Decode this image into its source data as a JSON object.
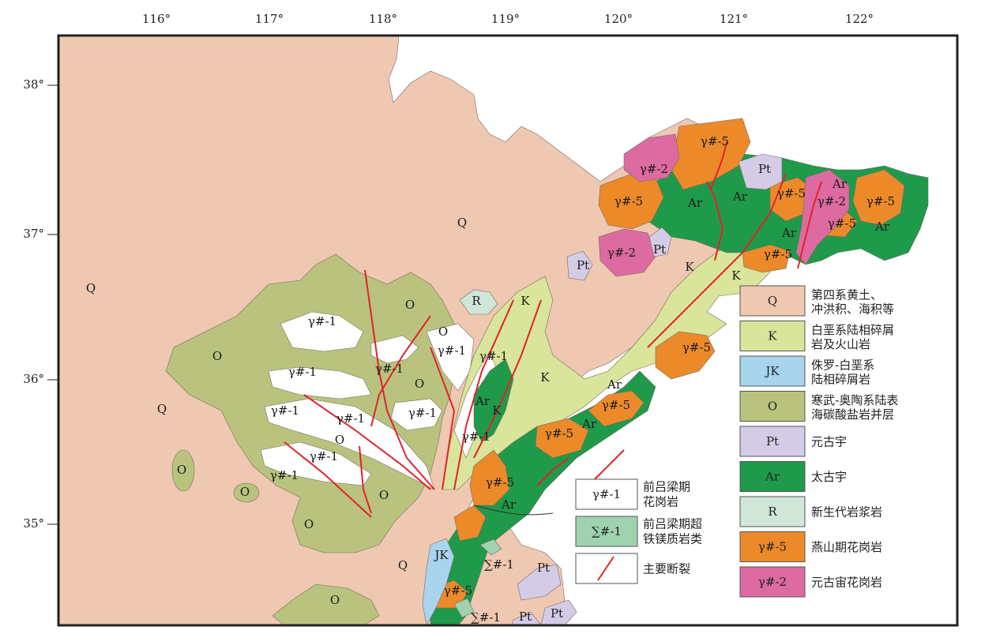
{
  "colors": {
    "Q": "#efc8b1",
    "K": "#d9e59a",
    "JK": "#a9d4ee",
    "O": "#b9c37e",
    "Pt": "#d4cce6",
    "Ar": "#1f9a4a",
    "R": "#cfe6d8",
    "g5": "#ec8a2a",
    "g2": "#dd6aa0",
    "g1": "#ffffff",
    "s1": "#9fd3b0",
    "fault": "#e0232b"
  },
  "axes": {
    "lon_ticks": [
      "116°",
      "117°",
      "118°",
      "119°",
      "120°",
      "121°",
      "122°"
    ],
    "lat_ticks": [
      "38°",
      "37°",
      "36°",
      "35°"
    ]
  },
  "legend_right": [
    {
      "code": "Q",
      "color_key": "Q",
      "line1": "第四系黄土、",
      "line2": "冲洪积、海积等"
    },
    {
      "code": "K",
      "color_key": "K",
      "line1": "白垩系陆相碎屑",
      "line2": "岩及火山岩"
    },
    {
      "code": "JK",
      "color_key": "JK",
      "line1": "侏罗-白垩系",
      "line2": "陆相碎屑岩"
    },
    {
      "code": "O",
      "color_key": "O",
      "line1": "寒武-奥陶系陆表",
      "line2": "海碳酸盐岩并层"
    },
    {
      "code": "Pt",
      "color_key": "Pt",
      "line1": "元古宇",
      "line2": ""
    },
    {
      "code": "Ar",
      "color_key": "Ar",
      "line1": "太古宇",
      "line2": ""
    },
    {
      "code": "R",
      "color_key": "R",
      "line1": "新生代岩浆岩",
      "line2": ""
    },
    {
      "code": "γ#-5",
      "color_key": "g5",
      "line1": "燕山期花岗岩",
      "line2": ""
    },
    {
      "code": "γ#-2",
      "color_key": "g2",
      "line1": "元古宙花岗岩",
      "line2": ""
    }
  ],
  "legend_mid": [
    {
      "code": "γ#-1",
      "color_key": "g1",
      "line1": "前吕梁期",
      "line2": "花岗岩"
    },
    {
      "code": "∑#-1",
      "color_key": "s1",
      "line1": "前吕梁期超",
      "line2": "铁镁质岩类"
    },
    {
      "code": "",
      "color_key": "fault_sample",
      "line1": "主要断裂",
      "line2": ""
    }
  ],
  "map_labels": {
    "Q": "Q",
    "K": "K",
    "JK": "JK",
    "O": "O",
    "Pt": "Pt",
    "Ar": "Ar",
    "R": "R",
    "g1": "γ#-1",
    "g2": "γ#-2",
    "g5": "γ#-5",
    "s1": "∑#-1"
  }
}
